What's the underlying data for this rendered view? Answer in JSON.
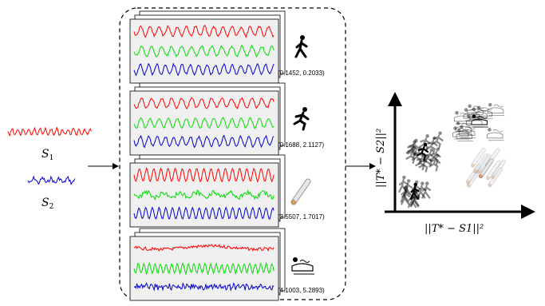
{
  "inputs": [
    {
      "id": "s1",
      "label": "S",
      "sub": "1",
      "color": "#ff0000"
    },
    {
      "id": "s2",
      "label": "S",
      "sub": "2",
      "color": "#0000cc"
    }
  ],
  "samples": [
    {
      "coords": "(0.1452, 0.2033)",
      "icon": "walking-person-icon"
    },
    {
      "coords": "(0.1688, 2.1127)",
      "icon": "running-person-icon"
    },
    {
      "coords": "(3.5507, 1.7017)",
      "icon": "rolling-pin-icon"
    },
    {
      "coords": "(4.1003, 5.2893)",
      "icon": "sleeping-person-icon"
    }
  ],
  "plot": {
    "ylabel": "||T* − S2||²",
    "xlabel": "||T* − S1||²"
  },
  "colors": {
    "red": "#ff0000",
    "green": "#00dd00",
    "blue": "#0000cc",
    "frame": "#000000"
  }
}
